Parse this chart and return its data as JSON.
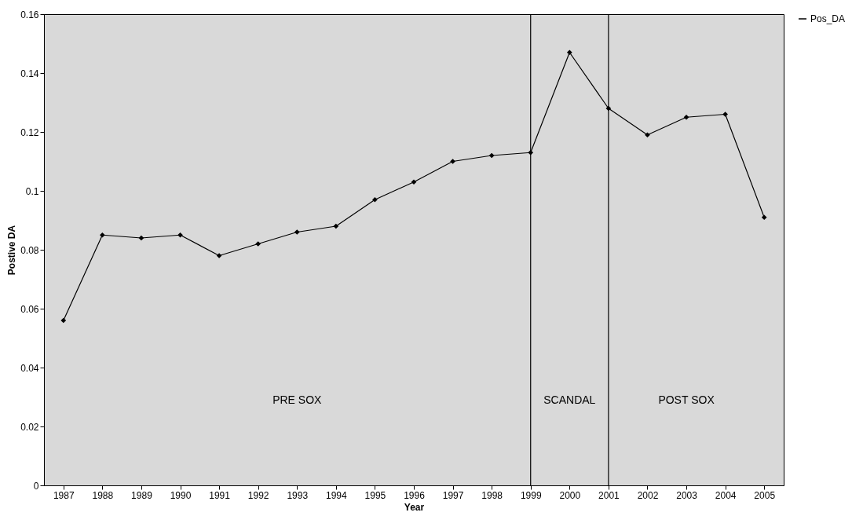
{
  "chart_data": {
    "type": "line",
    "xlabel": "Year",
    "ylabel": "Postive DA",
    "categories": [
      "1987",
      "1988",
      "1989",
      "1990",
      "1991",
      "1992",
      "1993",
      "1994",
      "1995",
      "1996",
      "1997",
      "1998",
      "1999",
      "2000",
      "2001",
      "2002",
      "2003",
      "2004",
      "2005"
    ],
    "series": [
      {
        "name": "Pos_DA",
        "color": "#000000",
        "values": [
          0.056,
          0.085,
          0.084,
          0.085,
          0.078,
          0.082,
          0.086,
          0.088,
          0.097,
          0.103,
          0.11,
          0.112,
          0.113,
          0.147,
          0.128,
          0.119,
          0.125,
          0.126,
          0.091
        ]
      }
    ],
    "ylim": [
      0,
      0.16
    ],
    "yticks": [
      0,
      0.02,
      0.04,
      0.06,
      0.08,
      0.1,
      0.12,
      0.14,
      0.16
    ],
    "ref_lines": [
      {
        "axis": "x",
        "value": "1999",
        "color": "#000000"
      },
      {
        "axis": "x",
        "value": "2001",
        "color": "#000000"
      }
    ],
    "annotations": [
      "PRE SOX",
      "SCANDAL",
      "POST SOX"
    ],
    "marker": "diamond",
    "legend": "right",
    "grid": false
  }
}
